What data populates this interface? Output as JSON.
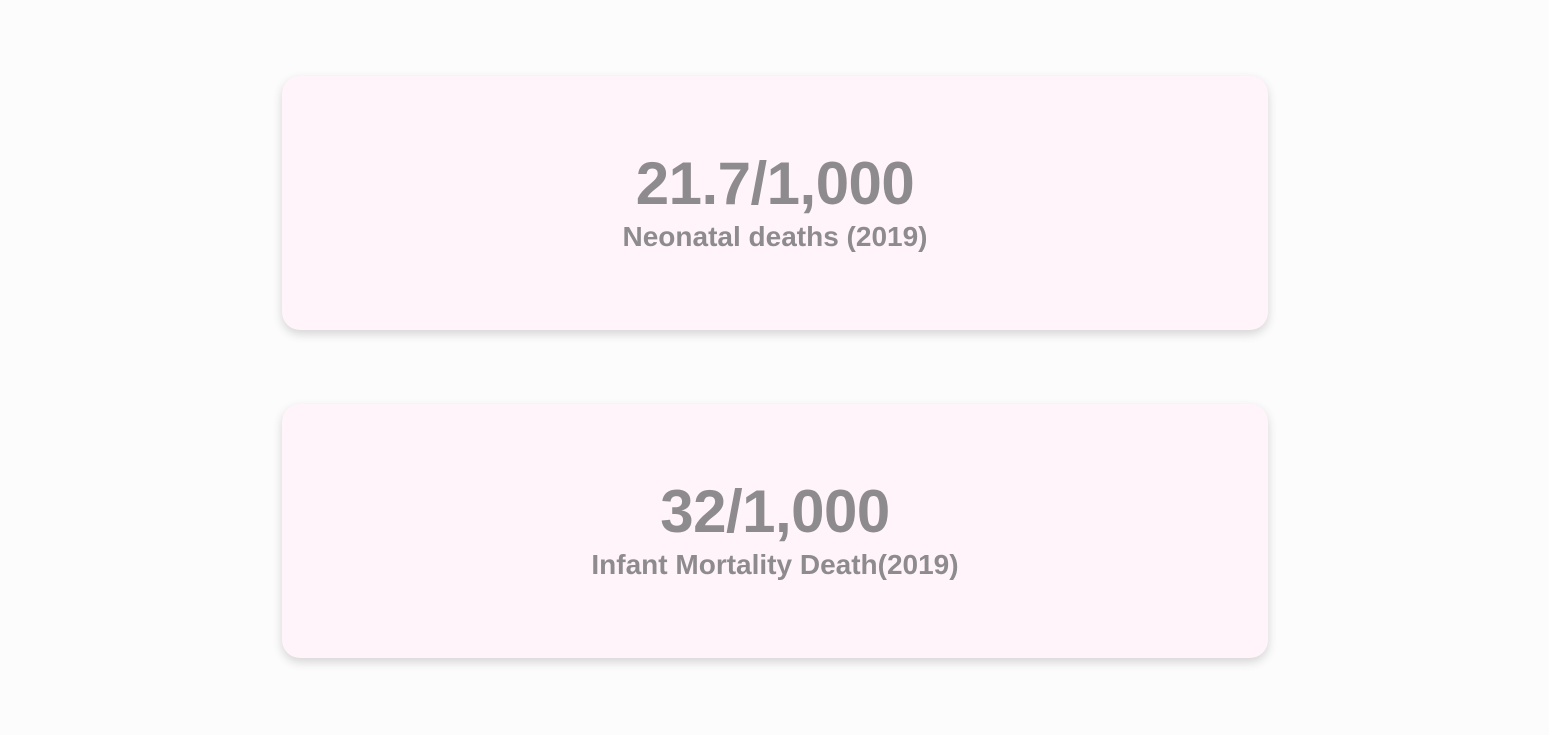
{
  "stats": [
    {
      "value": "21.7/1,000",
      "label": "Neonatal deaths (2019)"
    },
    {
      "value": "32/1,000",
      "label": "Infant Mortality Death(2019)"
    }
  ],
  "colors": {
    "page_background": "#fcfcfc",
    "card_background": "#fff4fa",
    "text": "#8e8b8e"
  }
}
